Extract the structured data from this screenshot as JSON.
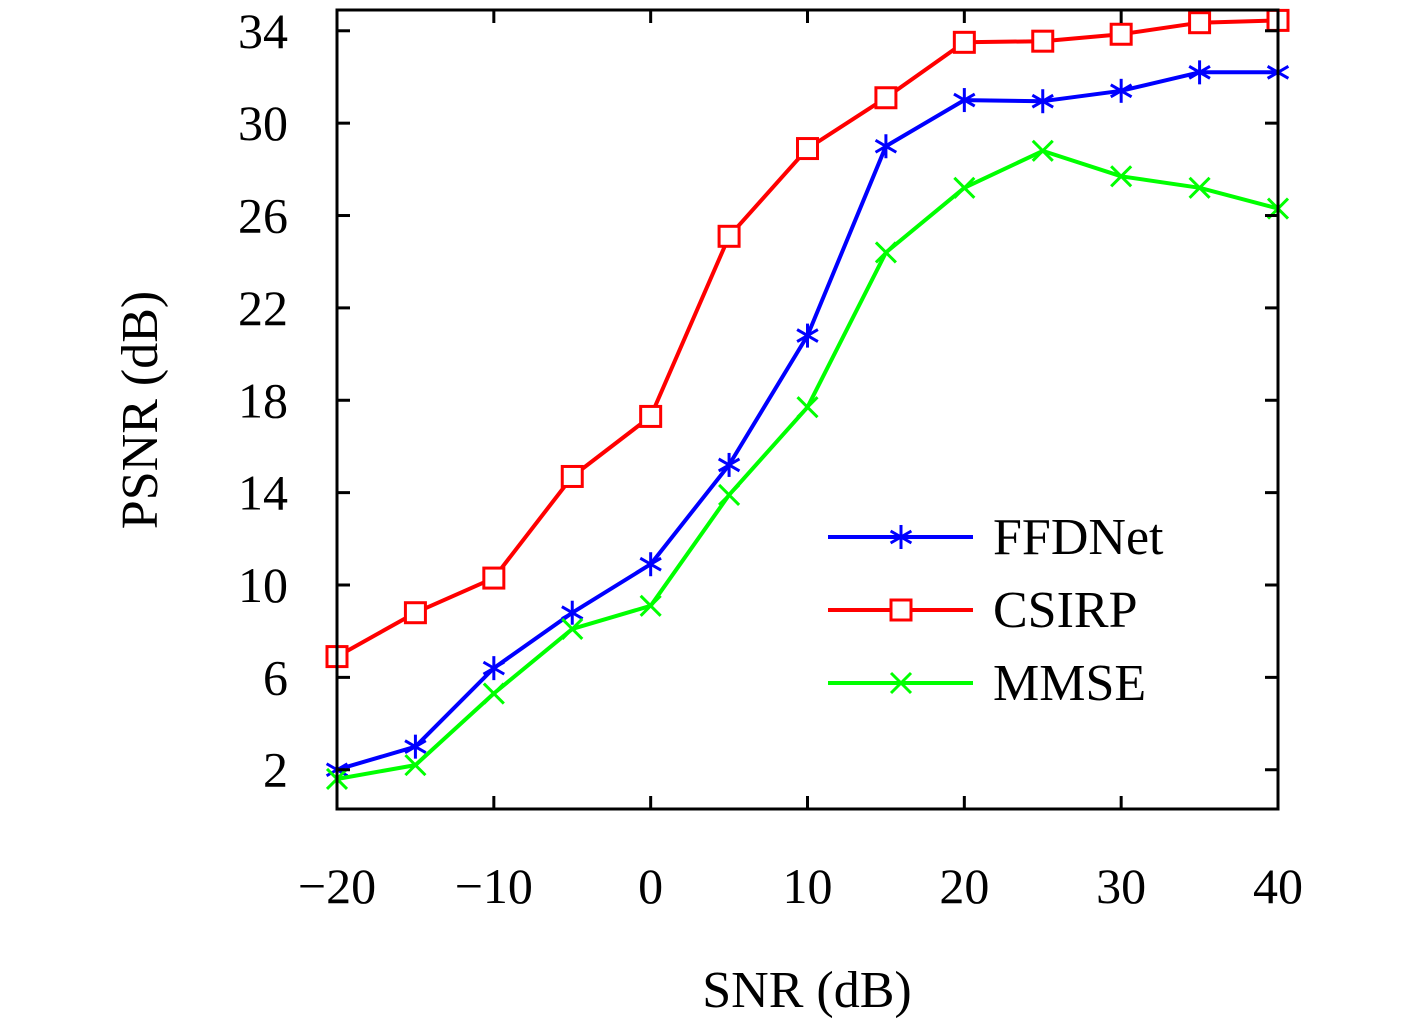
{
  "chart_data": {
    "type": "line",
    "title": "",
    "xlabel": "SNR (dB)",
    "ylabel": "PSNR (dB)",
    "x": [
      -20,
      -15,
      -10,
      -5,
      0,
      5,
      10,
      15,
      20,
      25,
      30,
      35,
      40
    ],
    "xlim": [
      -20,
      40
    ],
    "ylim": [
      0.3,
      34.9
    ],
    "xticks": [
      -20,
      -10,
      0,
      10,
      20,
      30,
      40
    ],
    "xtick_labels": [
      "−20",
      "−10",
      "0",
      "10",
      "20",
      "30",
      "40"
    ],
    "yticks": [
      2,
      6,
      10,
      14,
      18,
      22,
      26,
      30,
      34
    ],
    "ytick_labels": [
      "2",
      "6",
      "10",
      "14",
      "18",
      "22",
      "26",
      "30",
      "34"
    ],
    "grid": false,
    "legend_position": "bottom-right",
    "series": [
      {
        "name": "FFDNet",
        "color": "#0000ff",
        "marker": "asterisk",
        "values": [
          2.0,
          3.0,
          6.4,
          8.8,
          10.9,
          15.2,
          20.8,
          29.0,
          31.0,
          30.95,
          31.4,
          32.2,
          32.2
        ]
      },
      {
        "name": "CSIRP",
        "color": "#ff0000",
        "marker": "square",
        "values": [
          6.9,
          8.8,
          10.3,
          14.7,
          17.3,
          25.1,
          28.9,
          31.1,
          33.5,
          33.55,
          33.85,
          34.35,
          34.45
        ]
      },
      {
        "name": "MMSE",
        "color": "#00ff00",
        "marker": "x",
        "values": [
          1.6,
          2.2,
          5.3,
          8.1,
          9.1,
          13.9,
          17.7,
          24.4,
          27.2,
          28.8,
          27.7,
          27.2,
          26.3
        ]
      }
    ]
  }
}
